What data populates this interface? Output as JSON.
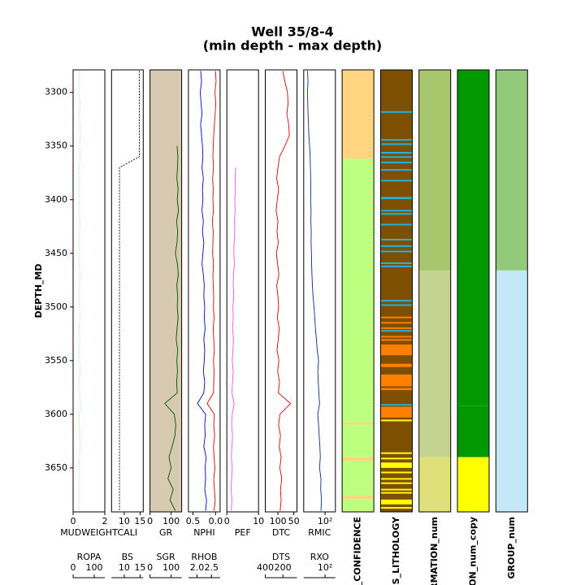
{
  "chart_data": {
    "type": "well_log",
    "title": "Well 35/8-4",
    "subtitle": "(min depth - max depth)",
    "y_label": "DEPTH_MD",
    "ylim": [
      3279,
      3691
    ],
    "yticks": [
      3300,
      3350,
      3400,
      3450,
      3500,
      3550,
      3600,
      3650
    ],
    "depth": [
      3280,
      3290,
      3300,
      3310,
      3320,
      3330,
      3340,
      3350,
      3360,
      3370,
      3380,
      3390,
      3400,
      3410,
      3420,
      3430,
      3440,
      3450,
      3460,
      3470,
      3480,
      3490,
      3500,
      3510,
      3520,
      3530,
      3540,
      3550,
      3560,
      3570,
      3580,
      3590,
      3600,
      3610,
      3620,
      3630,
      3640,
      3650,
      3660,
      3670,
      3680,
      3690
    ],
    "tracks": [
      {
        "scales": [
          {
            "label": "MUDWEIGHT",
            "color": "#7f4f1f",
            "xlim": [
              0,
              2
            ],
            "xticks": [
              0,
              2
            ]
          },
          {
            "label": "ROPA",
            "color": "#22dd22",
            "xlim": [
              0,
              150
            ],
            "xticks": [
              0,
              100
            ],
            "line_color": "#a8f5a8",
            "dash": true,
            "values": [
              28,
              30,
              27,
              32,
              29,
              31,
              35,
              30,
              33,
              28,
              31,
              29,
              30,
              27,
              32,
              30,
              28,
              31,
              29,
              33,
              30,
              28,
              30,
              32,
              29,
              31,
              28,
              30,
              33,
              29,
              31,
              35,
              30,
              28,
              32,
              34,
              30,
              29,
              31,
              28,
              30,
              29
            ]
          }
        ]
      },
      {
        "scales": [
          {
            "label": "CALI",
            "color": "#999999",
            "xlim": [
              6,
              16
            ],
            "xticks": [
              10,
              15
            ]
          },
          {
            "label": "BS",
            "color": "#000000",
            "xlim": [
              6,
              16
            ],
            "xticks": [
              10,
              15
            ],
            "dash": true,
            "values": [
              14.75,
              14.75,
              14.75,
              14.75,
              14.75,
              14.75,
              14.75,
              14.75,
              14.75,
              8.5,
              8.5,
              8.5,
              8.5,
              8.5,
              8.5,
              8.5,
              8.5,
              8.5,
              8.5,
              8.5,
              8.5,
              8.5,
              8.5,
              8.5,
              8.5,
              8.5,
              8.5,
              8.5,
              8.5,
              8.5,
              8.5,
              8.5,
              8.5,
              8.5,
              8.5,
              8.5,
              8.5,
              8.5,
              8.5,
              8.5,
              8.5,
              8.5
            ]
          }
        ]
      },
      {
        "background": "#d8cab0",
        "scales": [
          {
            "label": "GR",
            "color": "#005500",
            "xlim": [
              0,
              150
            ],
            "xticks": [
              0,
              100
            ],
            "values": [
              null,
              null,
              null,
              null,
              null,
              null,
              null,
              128,
              132,
              130,
              127,
              133,
              129,
              135,
              126,
              131,
              128,
              120,
              130,
              134,
              127,
              131,
              129,
              133,
              128,
              124,
              131,
              127,
              130,
              126,
              129,
              70,
              115,
              122,
              118,
              105,
              90,
              100,
              85,
              110,
              95,
              120
            ]
          },
          {
            "label": "SGR",
            "color": "#77cc77",
            "xlim": [
              0,
              150
            ],
            "xticks": [
              0,
              100
            ]
          }
        ]
      },
      {
        "scales": [
          {
            "label": "NPHI",
            "color": "#0000dd",
            "xlim": [
              0.6,
              -0.1
            ],
            "xticks": [
              0.5,
              {
                "value": 0,
                "label": "0.0"
              }
            ],
            "values": [
              0.33,
              0.31,
              0.34,
              0.32,
              0.3,
              0.33,
              0.31,
              0.29,
              0.28,
              0.3,
              0.27,
              0.29,
              0.28,
              0.3,
              0.27,
              0.29,
              0.26,
              0.28,
              0.3,
              0.27,
              0.25,
              0.26,
              0.24,
              0.25,
              0.23,
              0.26,
              0.24,
              0.25,
              0.27,
              0.24,
              0.26,
              0.4,
              0.22,
              0.24,
              0.23,
              0.26,
              0.21,
              0.23,
              0.22,
              0.24,
              0.2,
              0.22
            ]
          },
          {
            "label": "RHOB",
            "color": "#dd0000",
            "xlim": [
              1.7,
              2.8
            ],
            "xticks": [
              {
                "value": 2,
                "label": "2.0"
              },
              2.5
            ],
            "values": [
              2.64,
              2.66,
              2.62,
              2.65,
              2.63,
              2.6,
              2.58,
              2.56,
              2.55,
              2.57,
              2.54,
              2.56,
              2.55,
              2.57,
              2.53,
              2.56,
              2.55,
              2.54,
              2.57,
              2.55,
              2.56,
              2.58,
              2.57,
              2.59,
              2.56,
              2.58,
              2.6,
              2.57,
              2.59,
              2.58,
              2.57,
              2.35,
              2.6,
              2.58,
              2.61,
              2.57,
              2.59,
              2.62,
              2.58,
              2.6,
              2.63,
              2.59
            ]
          }
        ]
      },
      {
        "scales": [
          {
            "label": "PEF",
            "color": "#ee55ee",
            "xlim": [
              0,
              10
            ],
            "xticks": [
              0,
              10
            ],
            "values": [
              null,
              null,
              null,
              null,
              null,
              null,
              null,
              null,
              null,
              2.8,
              2.6,
              2.7,
              2.5,
              2.6,
              2.4,
              2.5,
              2.3,
              2.2,
              2.4,
              2.1,
              2.0,
              2.2,
              1.9,
              2.0,
              1.8,
              2.1,
              1.9,
              1.7,
              2.0,
              1.8,
              1.6,
              2.3,
              1.7,
              1.5,
              1.8,
              1.6,
              1.4,
              1.7,
              1.5,
              1.3,
              1.6,
              1.4
            ]
          }
        ]
      },
      {
        "scales": [
          {
            "label": "DTC",
            "color": "#dd0000",
            "xlim": [
              140,
              40
            ],
            "xticks": [
              100,
              50
            ],
            "values": [
              85,
              78,
              70,
              68,
              72,
              66,
              64,
              78,
              95,
              100,
              104,
              98,
              102,
              106,
              100,
              103,
              99,
              105,
              101,
              97,
              104,
              100,
              98,
              102,
              96,
              99,
              103,
              97,
              101,
              95,
              99,
              60,
              94,
              98,
              92,
              96,
              90,
              94,
              88,
              92,
              90,
              93
            ]
          },
          {
            "label": "DTS",
            "color": "#cc55cc",
            "xlim": [
              400,
              40
            ],
            "xticks": [
              400,
              200
            ]
          }
        ]
      },
      {
        "scales": [
          {
            "label": "RMIC",
            "color": "#000000",
            "line_color": "#0a2a8a",
            "log": true,
            "xlim": [
              0.2,
              2000
            ],
            "xticks": [
              {
                "value": 100,
                "label": "10²"
              }
            ],
            "values": [
              0.6,
              0.7,
              0.6,
              0.65,
              0.7,
              0.8,
              0.9,
              1.1,
              1.3,
              1.4,
              1.5,
              1.6,
              1.5,
              1.7,
              1.6,
              1.8,
              1.7,
              1.9,
              2.0,
              2.2,
              2.5,
              3,
              4,
              5,
              6,
              8,
              10,
              15,
              12,
              14,
              16,
              20,
              12,
              15,
              18,
              22,
              25,
              20,
              30,
              28,
              35,
              30
            ]
          },
          {
            "label": "RXO",
            "color": "#33ee88",
            "log": true,
            "xlim": [
              0.2,
              2000
            ],
            "xticks": [
              {
                "value": 100,
                "label": "10²"
              }
            ]
          }
        ]
      },
      {
        "label": "S_CONFIDENCE",
        "intervals": [
          {
            "top": 3279,
            "base": 3362,
            "color": "#ffd580"
          },
          {
            "top": 3362,
            "base": 3691,
            "color": "#bfff80"
          },
          {
            "top": 3607.5,
            "base": 3609.5,
            "color": "#ffd580"
          },
          {
            "top": 3640,
            "base": 3643.5,
            "color": "#ffd580"
          },
          {
            "top": 3676,
            "base": 3679,
            "color": "#ffd580"
          }
        ]
      },
      {
        "label": "ES_LITHOLOGY",
        "intervals": [
          {
            "top": 3279,
            "base": 3691,
            "color": "#7f4f00"
          },
          {
            "top": 3317.5,
            "base": 3319,
            "color": "#1fb4e0"
          },
          {
            "top": 3343.5,
            "base": 3345,
            "color": "#1fb4e0"
          },
          {
            "top": 3347.5,
            "base": 3349,
            "color": "#1fb4e0"
          },
          {
            "top": 3355.5,
            "base": 3357,
            "color": "#1fb4e0"
          },
          {
            "top": 3359.5,
            "base": 3361,
            "color": "#1fb4e0"
          },
          {
            "top": 3364.5,
            "base": 3366,
            "color": "#1fb4e0"
          },
          {
            "top": 3371.5,
            "base": 3373,
            "color": "#1fb4e0"
          },
          {
            "top": 3381.5,
            "base": 3383,
            "color": "#1fb4e0"
          },
          {
            "top": 3397.5,
            "base": 3399.5,
            "color": "#1fb4e0"
          },
          {
            "top": 3409.5,
            "base": 3411,
            "color": "#1fb4e0"
          },
          {
            "top": 3412.5,
            "base": 3414,
            "color": "#1fb4e0"
          },
          {
            "top": 3422.5,
            "base": 3424,
            "color": "#1fb4e0"
          },
          {
            "top": 3436.5,
            "base": 3438,
            "color": "#1fb4e0"
          },
          {
            "top": 3442.5,
            "base": 3444,
            "color": "#1fb4e0"
          },
          {
            "top": 3447.5,
            "base": 3449,
            "color": "#1fb4e0"
          },
          {
            "top": 3458.5,
            "base": 3460,
            "color": "#1fb4e0"
          },
          {
            "top": 3461.5,
            "base": 3463,
            "color": "#1fb4e0"
          },
          {
            "top": 3493.5,
            "base": 3495,
            "color": "#1fb4e0"
          },
          {
            "top": 3497.5,
            "base": 3499,
            "color": "#1fb4e0"
          },
          {
            "top": 3509,
            "base": 3510.5,
            "color": "#ff7f00"
          },
          {
            "top": 3514,
            "base": 3515.5,
            "color": "#ff7f00"
          },
          {
            "top": 3519,
            "base": 3520.5,
            "color": "#ff7f00"
          },
          {
            "top": 3521.5,
            "base": 3523,
            "color": "#1fb4e0"
          },
          {
            "top": 3527,
            "base": 3528.5,
            "color": "#ff7f00"
          },
          {
            "top": 3530,
            "base": 3531.5,
            "color": "#ff7f00"
          },
          {
            "top": 3535,
            "base": 3545,
            "color": "#ff7f00"
          },
          {
            "top": 3553,
            "base": 3556,
            "color": "#ff7f00"
          },
          {
            "top": 3563,
            "base": 3574,
            "color": "#ff7f00"
          },
          {
            "top": 3575.5,
            "base": 3577.5,
            "color": "#ff7f00"
          },
          {
            "top": 3590.5,
            "base": 3592,
            "color": "#1fb4e0"
          },
          {
            "top": 3593,
            "base": 3603,
            "color": "#ff7f00"
          },
          {
            "top": 3605,
            "base": 3606.5,
            "color": "#ffff00"
          },
          {
            "top": 3635.5,
            "base": 3637,
            "color": "#ffff00"
          },
          {
            "top": 3640.5,
            "base": 3642,
            "color": "#ffff00"
          },
          {
            "top": 3645,
            "base": 3650,
            "color": "#ffff00"
          },
          {
            "top": 3653.5,
            "base": 3655,
            "color": "#ffff00"
          },
          {
            "top": 3659.5,
            "base": 3661,
            "color": "#ffff00"
          },
          {
            "top": 3663.5,
            "base": 3665,
            "color": "#ffff00"
          },
          {
            "top": 3669.5,
            "base": 3671,
            "color": "#ffff00"
          },
          {
            "top": 3672.5,
            "base": 3674,
            "color": "#ffff00"
          },
          {
            "top": 3679.5,
            "base": 3684,
            "color": "#ffff00"
          },
          {
            "top": 3686.5,
            "base": 3688,
            "color": "#ffff00"
          }
        ]
      },
      {
        "label": "RMATION_num",
        "intervals": [
          {
            "top": 3279,
            "base": 3466,
            "color": "#a8c66c"
          },
          {
            "top": 3466,
            "base": 3640,
            "color": "#c4d490"
          },
          {
            "top": 3640,
            "base": 3691,
            "color": "#e0e07a"
          }
        ]
      },
      {
        "label": "TION_num_copy",
        "intervals": [
          {
            "top": 3279,
            "base": 3592,
            "color": "#009900"
          },
          {
            "top": 3592,
            "base": 3640,
            "color": "#009900"
          },
          {
            "top": 3640,
            "base": 3691,
            "color": "#ffff00"
          }
        ]
      },
      {
        "label": "GROUP_num",
        "intervals": [
          {
            "top": 3279,
            "base": 3466,
            "color": "#92c97a"
          },
          {
            "top": 3466,
            "base": 3691,
            "color": "#c5e8f8"
          }
        ]
      }
    ]
  }
}
